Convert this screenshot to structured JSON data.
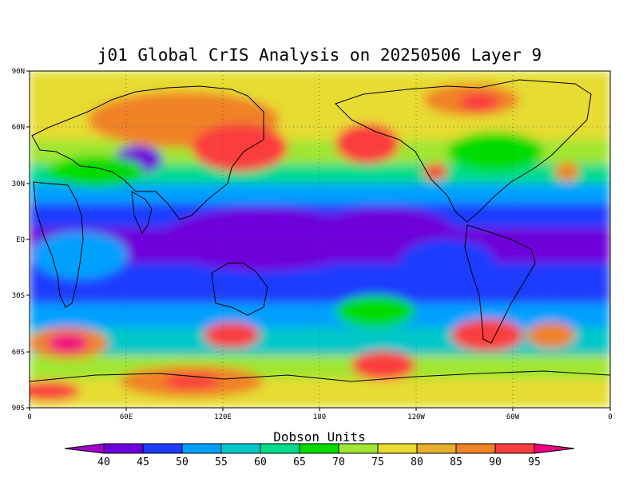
{
  "title": "j01 Global CrIS Analysis on 20250506 Layer 9",
  "map": {
    "lat_ticks": [
      "90N",
      "60N",
      "30N",
      "EQ",
      "30S",
      "60S",
      "90S"
    ],
    "lon_ticks": [
      "0",
      "60E",
      "120E",
      "180",
      "120W",
      "60W",
      "0"
    ],
    "grid_lines": "dotted",
    "projection": "cylindrical equidistant"
  },
  "colorbar": {
    "label": "Dobson Units",
    "ticks": [
      "40",
      "45",
      "50",
      "55",
      "60",
      "65",
      "70",
      "75",
      "80",
      "85",
      "90",
      "95"
    ],
    "colors": [
      "#a000c8",
      "#6e00dc",
      "#1e3cff",
      "#00a0ff",
      "#00c8c8",
      "#00dc8c",
      "#00dc00",
      "#a0e632",
      "#e6dc32",
      "#e6af2d",
      "#f08228",
      "#fa3c3c",
      "#f00082"
    ]
  },
  "features": [
    {
      "lon": 102,
      "lat": 72,
      "name": "ridge-n-asia"
    },
    {
      "lon": 145,
      "lat": 48,
      "name": "max-nw-pacific"
    },
    {
      "lon": 190,
      "lat": 52,
      "name": "max-n-pacific"
    },
    {
      "lon": 282,
      "lat": 75,
      "name": "max-arctic"
    },
    {
      "lon": 63,
      "lat": 43,
      "name": "min-central-asia"
    },
    {
      "lon": 170,
      "lat": 0,
      "name": "min-tropical-pacific"
    },
    {
      "lon": 30,
      "lat": -52,
      "name": "max-s-atlantic-indian"
    },
    {
      "lon": 125,
      "lat": -48,
      "name": "max-s-indian"
    },
    {
      "lon": 285,
      "lat": -48,
      "name": "max-s-america"
    },
    {
      "lon": 210,
      "lat": -65,
      "name": "max-s-pacific"
    },
    {
      "lon": 95,
      "lat": -75,
      "name": "max-antarctic"
    }
  ]
}
